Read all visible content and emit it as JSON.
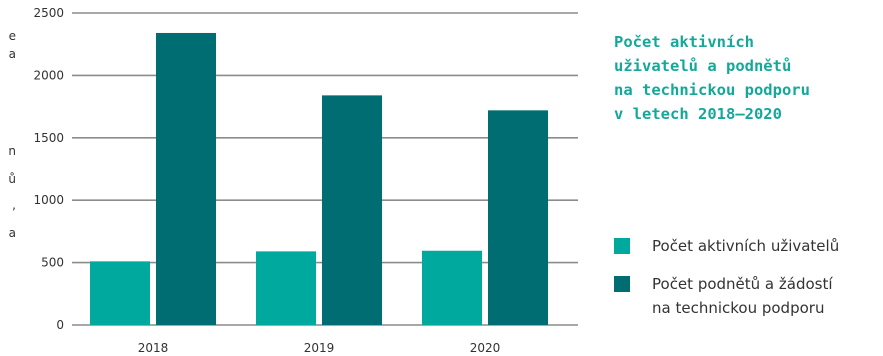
{
  "chart_data": {
    "type": "bar",
    "title_lines": [
      "Počet aktivních",
      "uživatelů a podnětů",
      "na technickou podporu",
      "v letech 2018–2020"
    ],
    "categories": [
      "2018",
      "2019",
      "2020"
    ],
    "series": [
      {
        "name": "Počet aktivních uživatelů",
        "values": [
          510,
          590,
          595
        ],
        "color": "#00a99d"
      },
      {
        "name": "Počet podnětů a žádostí\nna technickou podporu",
        "values": [
          2340,
          1840,
          1720
        ],
        "color": "#006d73"
      }
    ],
    "ylim": [
      0,
      2500
    ],
    "yticks": [
      "0",
      "500",
      "1000",
      "1500",
      "2000",
      "2500"
    ],
    "grid": true,
    "legend_position": "right"
  },
  "edge_fragments": [
    "e",
    "a",
    "n",
    "ů",
    ",",
    "a"
  ]
}
